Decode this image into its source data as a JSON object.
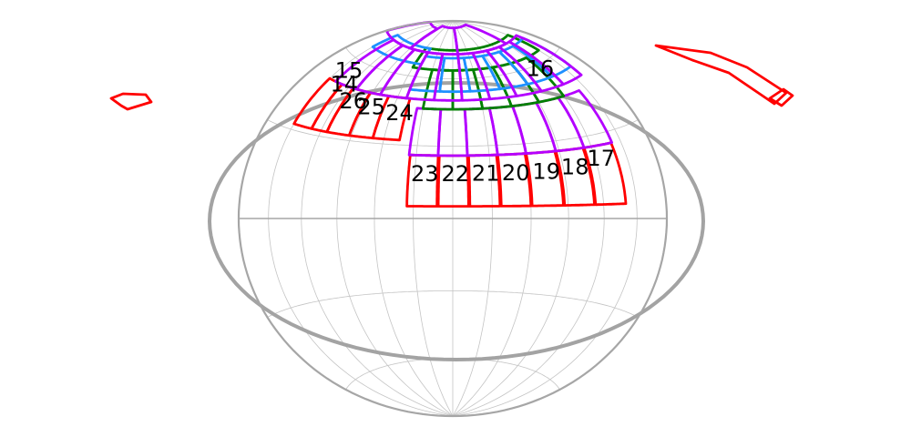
{
  "colors": {
    "background": "#ffffff",
    "graticule": "#c4c4c4",
    "outline": "#a6a6a6",
    "galactic_plane": "#a3a3a3",
    "red": "#ff0000",
    "green": "#008000",
    "blue": "#1e90ff",
    "purple": "#b300ff"
  },
  "map": {
    "projection": "hammer-aitoff",
    "sector_labels": [
      {
        "text": "15",
        "lon": 137,
        "lat": 55
      },
      {
        "text": "14",
        "lon": 127,
        "lat": 50
      },
      {
        "text": "26",
        "lon": 104,
        "lat": 45
      },
      {
        "text": "25",
        "lon": 82,
        "lat": 44
      },
      {
        "text": "24",
        "lon": 52,
        "lat": 43
      },
      {
        "text": "16",
        "lon": -120,
        "lat": 58
      },
      {
        "text": "23",
        "lon": 22,
        "lat": 18
      },
      {
        "text": "22",
        "lon": -2,
        "lat": 18
      },
      {
        "text": "21",
        "lon": -26,
        "lat": 18
      },
      {
        "text": "20",
        "lon": -50,
        "lat": 18
      },
      {
        "text": "19",
        "lon": -75,
        "lat": 18
      },
      {
        "text": "18",
        "lon": -100,
        "lat": 19
      },
      {
        "text": "17",
        "lon": -125,
        "lat": 21
      }
    ]
  }
}
